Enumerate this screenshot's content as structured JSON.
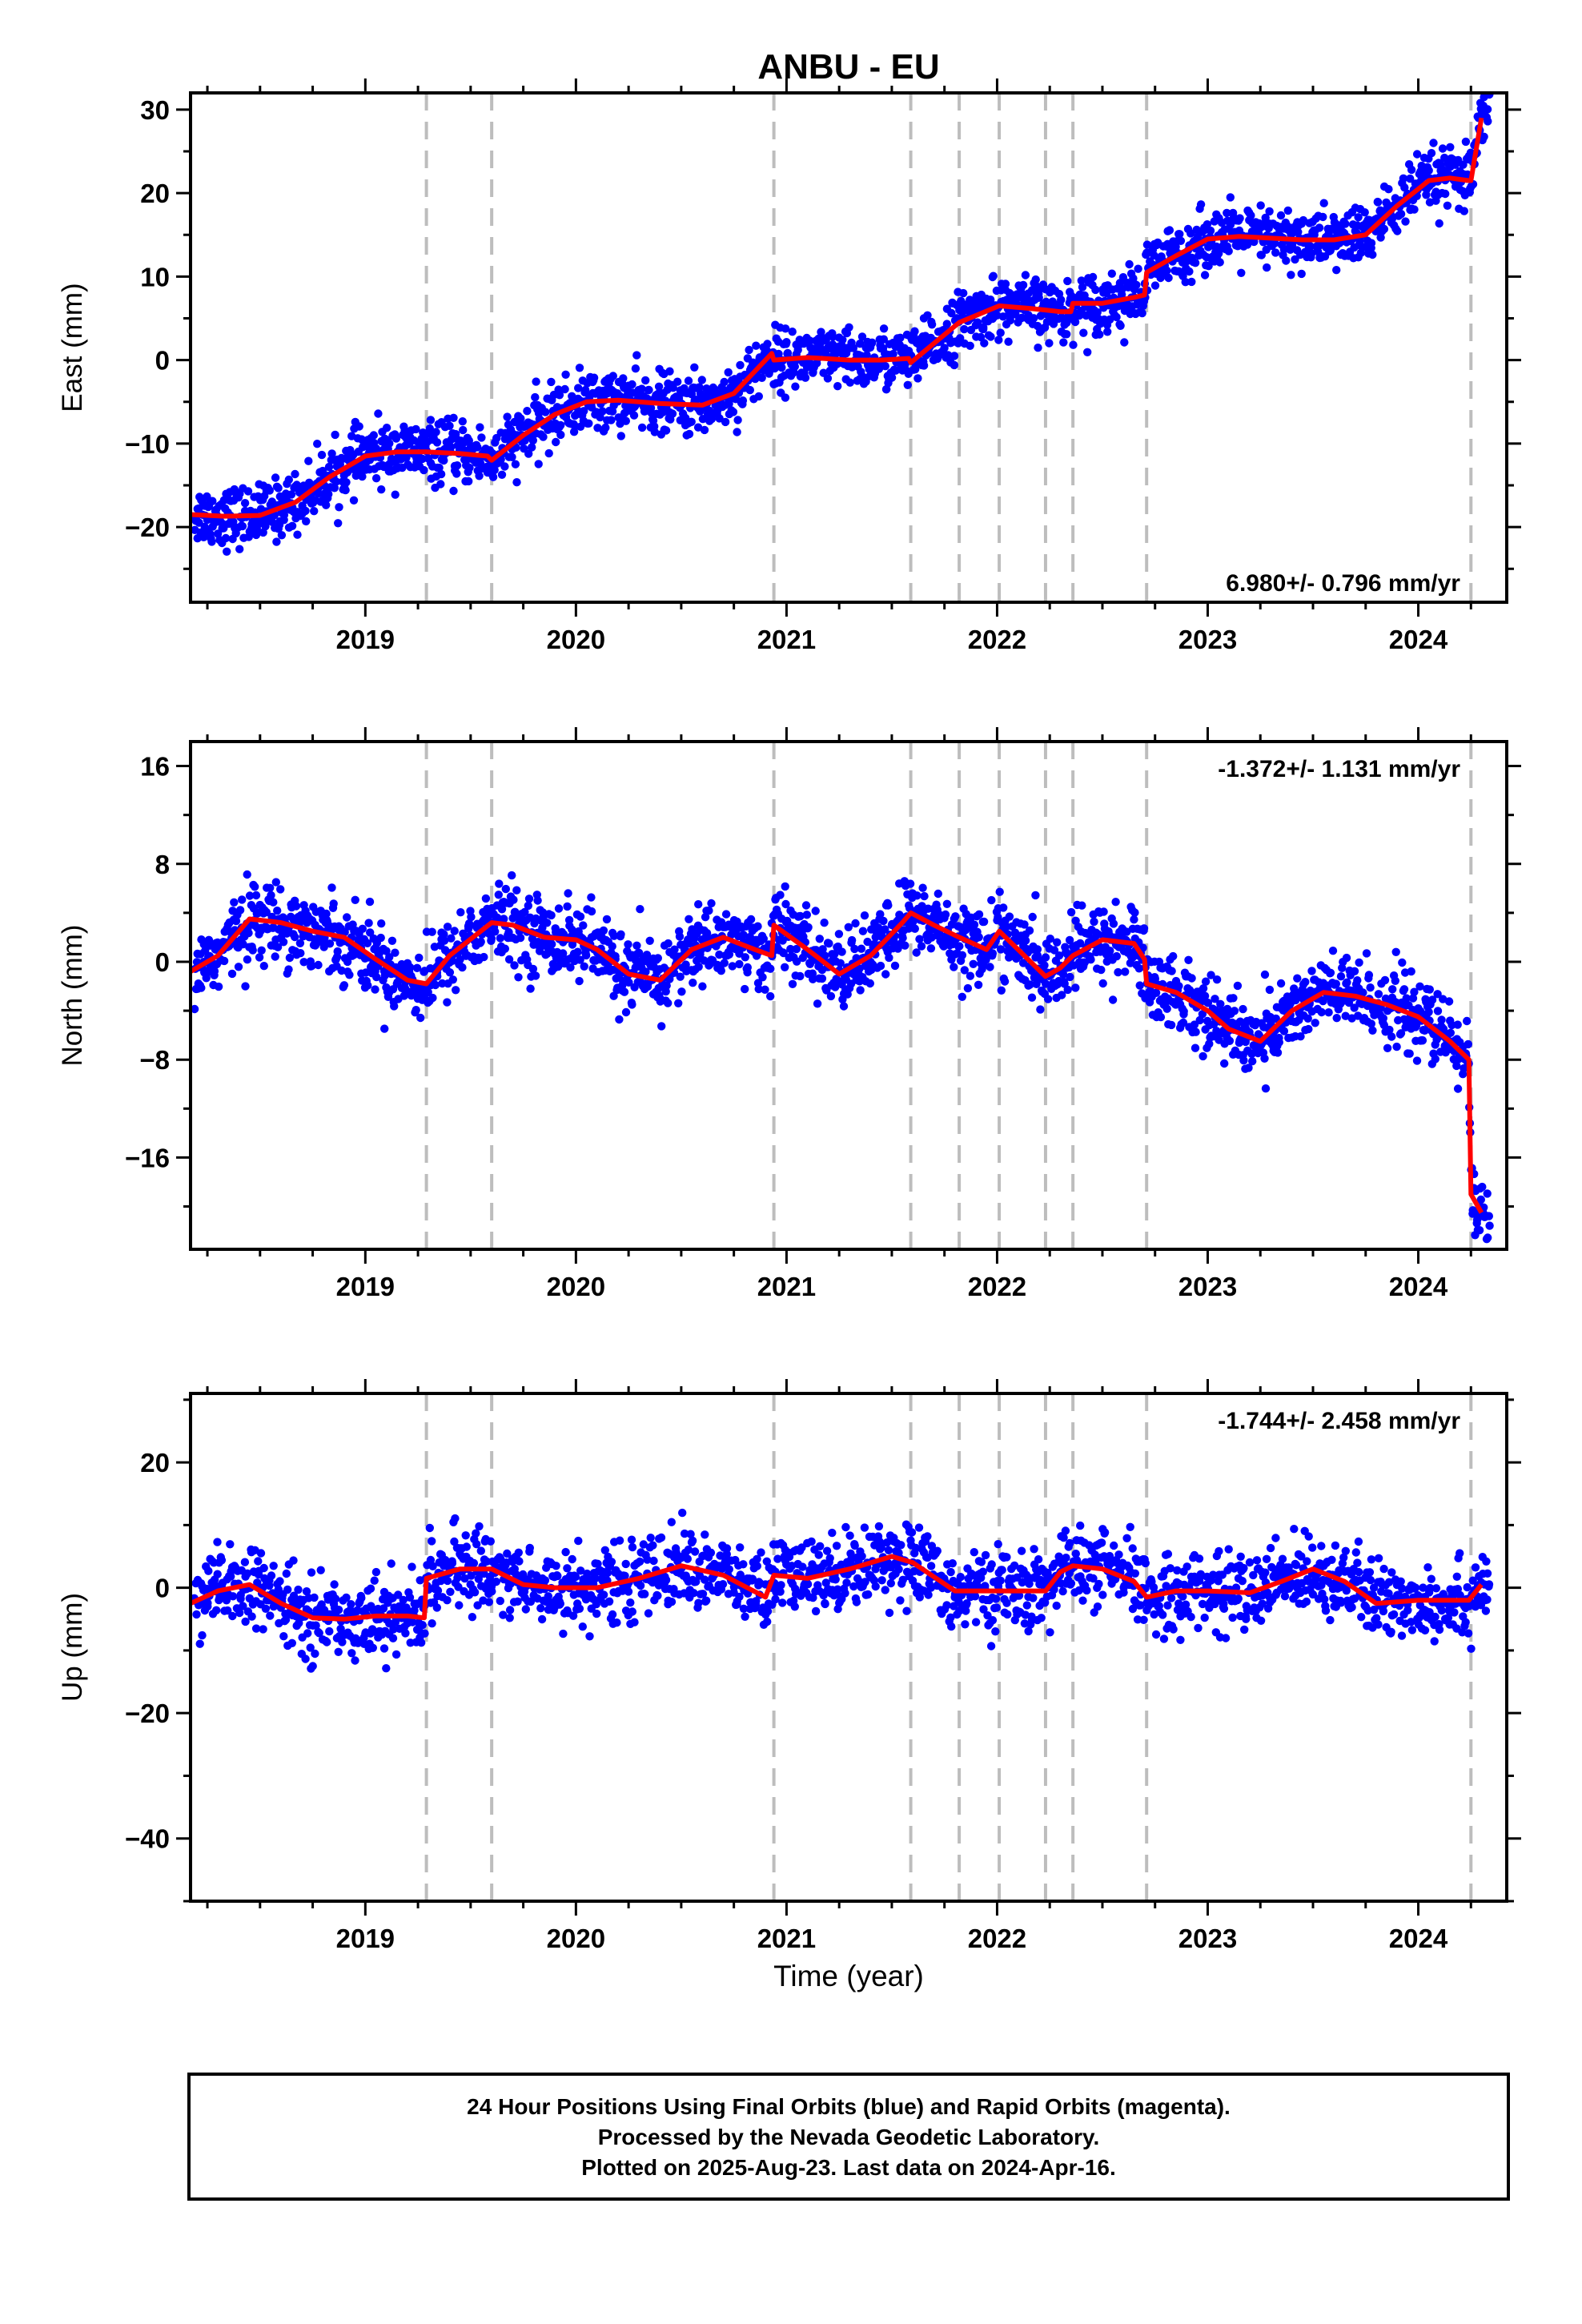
{
  "chart_data": {
    "type": "scatter",
    "title": "ANBU - EU",
    "xlabel": "Time (year)",
    "x_range": [
      2018.17,
      2024.42
    ],
    "x_ticks": [
      2019,
      2020,
      2021,
      2022,
      2023,
      2024
    ],
    "x_tick_labels": [
      "2019",
      "2020",
      "2021",
      "2022",
      "2023",
      "2024"
    ],
    "offset_lines": [
      2019.29,
      2019.6,
      2020.94,
      2021.59,
      2021.82,
      2022.01,
      2022.23,
      2022.36,
      2022.71,
      2024.25
    ],
    "colors": {
      "final_orbits": "#0000ff",
      "model": "#ff0000",
      "offset_lines": "#bdbdbd",
      "rapid_orbits": "#ff00ff"
    },
    "panels": [
      {
        "ylabel": "East (mm)",
        "ylim": [
          -29,
          32
        ],
        "yticks": [
          -20,
          -10,
          0,
          10,
          20,
          30
        ],
        "ytick_labels": [
          "−20",
          "−10",
          "0",
          "10",
          "20",
          "30"
        ],
        "rate_label": "6.980+/- 0.796 mm/yr",
        "rate_position": "bottom-right",
        "points_per_knot": 42,
        "scatter_spread": 3.2,
        "model_x": [
          2018.17,
          2018.33,
          2018.5,
          2018.67,
          2018.83,
          2019.0,
          2019.15,
          2019.29,
          2019.45,
          2019.58,
          2019.6,
          2019.75,
          2019.9,
          2020.05,
          2020.2,
          2020.4,
          2020.6,
          2020.75,
          2020.93,
          2020.94,
          2021.1,
          2021.3,
          2021.45,
          2021.58,
          2021.59,
          2021.7,
          2021.82,
          2022.01,
          2022.15,
          2022.23,
          2022.3,
          2022.35,
          2022.36,
          2022.5,
          2022.65,
          2022.7,
          2022.71,
          2022.85,
          2023.0,
          2023.15,
          2023.3,
          2023.45,
          2023.6,
          2023.75,
          2023.9,
          2024.05,
          2024.15,
          2024.24,
          2024.25,
          2024.3
        ],
        "model_y": [
          -18.5,
          -18.7,
          -18.6,
          -17.0,
          -14.0,
          -11.5,
          -11.0,
          -11.0,
          -11.2,
          -11.5,
          -12.0,
          -9.0,
          -6.5,
          -5.0,
          -4.8,
          -5.2,
          -5.4,
          -4.0,
          0.8,
          0.0,
          0.3,
          0.0,
          0.0,
          0.2,
          -0.3,
          2.0,
          4.5,
          6.5,
          6.2,
          6.0,
          5.8,
          5.8,
          6.8,
          6.8,
          7.5,
          7.8,
          10.5,
          12.5,
          14.5,
          14.8,
          14.6,
          14.4,
          14.4,
          15.0,
          18.5,
          21.5,
          21.8,
          21.5,
          21.5,
          29.0
        ]
      },
      {
        "ylabel": "North (mm)",
        "ylim": [
          -23.5,
          18
        ],
        "yticks": [
          -16,
          -8,
          0,
          8,
          16
        ],
        "ytick_labels": [
          "−16",
          "−8",
          "0",
          "8",
          "16"
        ],
        "rate_label": "-1.372+/- 1.131 mm/yr",
        "rate_position": "top-right",
        "points_per_knot": 40,
        "scatter_spread": 2.8,
        "model_x": [
          2018.17,
          2018.3,
          2018.45,
          2018.6,
          2018.75,
          2018.9,
          2019.05,
          2019.2,
          2019.29,
          2019.4,
          2019.6,
          2019.7,
          2019.85,
          2020.0,
          2020.1,
          2020.25,
          2020.4,
          2020.55,
          2020.7,
          2020.85,
          2020.93,
          2020.94,
          2021.1,
          2021.25,
          2021.4,
          2021.55,
          2021.59,
          2021.7,
          2021.82,
          2021.95,
          2022.01,
          2022.1,
          2022.23,
          2022.3,
          2022.36,
          2022.5,
          2022.65,
          2022.7,
          2022.71,
          2022.85,
          2023.0,
          2023.1,
          2023.25,
          2023.4,
          2023.55,
          2023.7,
          2023.85,
          2024.0,
          2024.15,
          2024.24,
          2024.25,
          2024.3
        ],
        "model_y": [
          -0.8,
          0.5,
          3.5,
          3.2,
          2.5,
          2.0,
          0.2,
          -1.5,
          -1.8,
          0.5,
          3.2,
          3.0,
          2.0,
          1.8,
          1.0,
          -1.0,
          -1.5,
          1.0,
          2.0,
          1.0,
          0.5,
          3.0,
          1.0,
          -1.0,
          0.5,
          3.2,
          4.0,
          3.0,
          2.0,
          1.0,
          2.5,
          1.0,
          -1.2,
          -0.5,
          0.5,
          1.8,
          1.5,
          0.2,
          -1.8,
          -2.5,
          -4.0,
          -5.5,
          -6.5,
          -4.0,
          -2.5,
          -2.8,
          -3.5,
          -4.5,
          -6.5,
          -8.0,
          -19.0,
          -20.5
        ]
      },
      {
        "ylabel": "Up (mm)",
        "ylim": [
          -50,
          31
        ],
        "yticks": [
          -40,
          -20,
          0,
          20
        ],
        "ytick_labels": [
          "−40",
          "−20",
          "0",
          "20"
        ],
        "rate_label": "-1.744+/- 2.458 mm/yr",
        "rate_position": "top-right",
        "points_per_knot": 42,
        "scatter_spread": 5.5,
        "model_x": [
          2018.17,
          2018.3,
          2018.45,
          2018.6,
          2018.75,
          2018.9,
          2019.05,
          2019.2,
          2019.28,
          2019.29,
          2019.45,
          2019.6,
          2019.75,
          2019.9,
          2020.1,
          2020.3,
          2020.5,
          2020.7,
          2020.9,
          2020.94,
          2021.1,
          2021.3,
          2021.5,
          2021.6,
          2021.8,
          2022.0,
          2022.15,
          2022.23,
          2022.3,
          2022.36,
          2022.5,
          2022.65,
          2022.71,
          2022.85,
          2023.0,
          2023.2,
          2023.35,
          2023.5,
          2023.65,
          2023.8,
          2024.0,
          2024.15,
          2024.24,
          2024.3
        ],
        "model_y": [
          -2.5,
          -0.5,
          0.5,
          -2.5,
          -4.8,
          -5.0,
          -4.5,
          -4.5,
          -4.8,
          1.5,
          3.0,
          3.0,
          0.5,
          0.0,
          0.0,
          1.5,
          3.5,
          2.0,
          -1.5,
          2.0,
          1.5,
          3.0,
          5.0,
          4.0,
          -0.5,
          -0.5,
          -0.5,
          -0.5,
          2.5,
          3.5,
          3.0,
          1.0,
          -1.5,
          -0.5,
          -0.5,
          -0.8,
          1.0,
          3.0,
          1.0,
          -2.5,
          -2.0,
          -2.0,
          -2.0,
          0.5
        ]
      }
    ]
  },
  "footer": {
    "line1": "24 Hour Positions Using Final Orbits (blue) and Rapid Orbits (magenta).",
    "line2": "Processed by the Nevada Geodetic Laboratory.",
    "line3": "Plotted on 2025-Aug-23. Last data on 2024-Apr-16."
  }
}
